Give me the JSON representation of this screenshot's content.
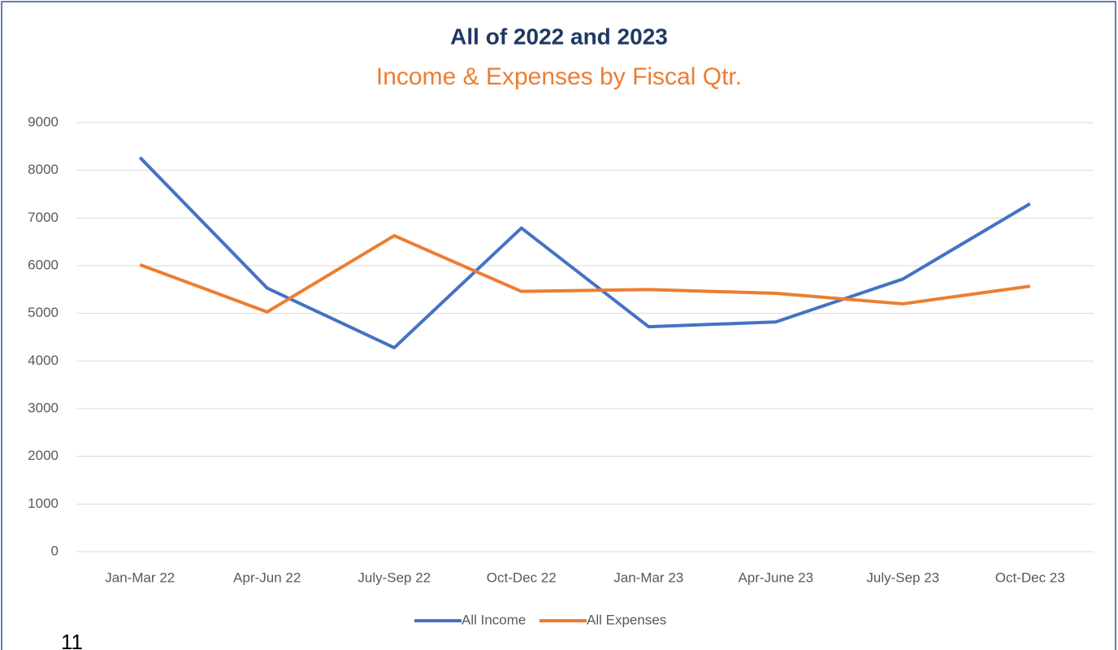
{
  "chart_data": {
    "type": "line",
    "title": "All of 2022 and 2023",
    "subtitle": "Income & Expenses by Fiscal Qtr.",
    "categories": [
      "Jan-Mar 22",
      "Apr-Jun 22",
      "July-Sep 22",
      "Oct-Dec 22",
      "Jan-Mar 23",
      "Apr-June 23",
      "July-Sep 23",
      "Oct-Dec 23"
    ],
    "series": [
      {
        "name": "All Income",
        "color": "#4472c4",
        "values": [
          8270,
          5530,
          4280,
          6790,
          4720,
          4820,
          5720,
          7300
        ]
      },
      {
        "name": "All Expenses",
        "color": "#ed7d31",
        "values": [
          6020,
          5030,
          6630,
          5460,
          5500,
          5420,
          5200,
          5570
        ]
      }
    ],
    "ylim": [
      0,
      9000
    ],
    "yticks": [
      0,
      1000,
      2000,
      3000,
      4000,
      5000,
      6000,
      7000,
      8000,
      9000
    ],
    "grid": true,
    "legend": "bottom",
    "page_number": "11"
  }
}
